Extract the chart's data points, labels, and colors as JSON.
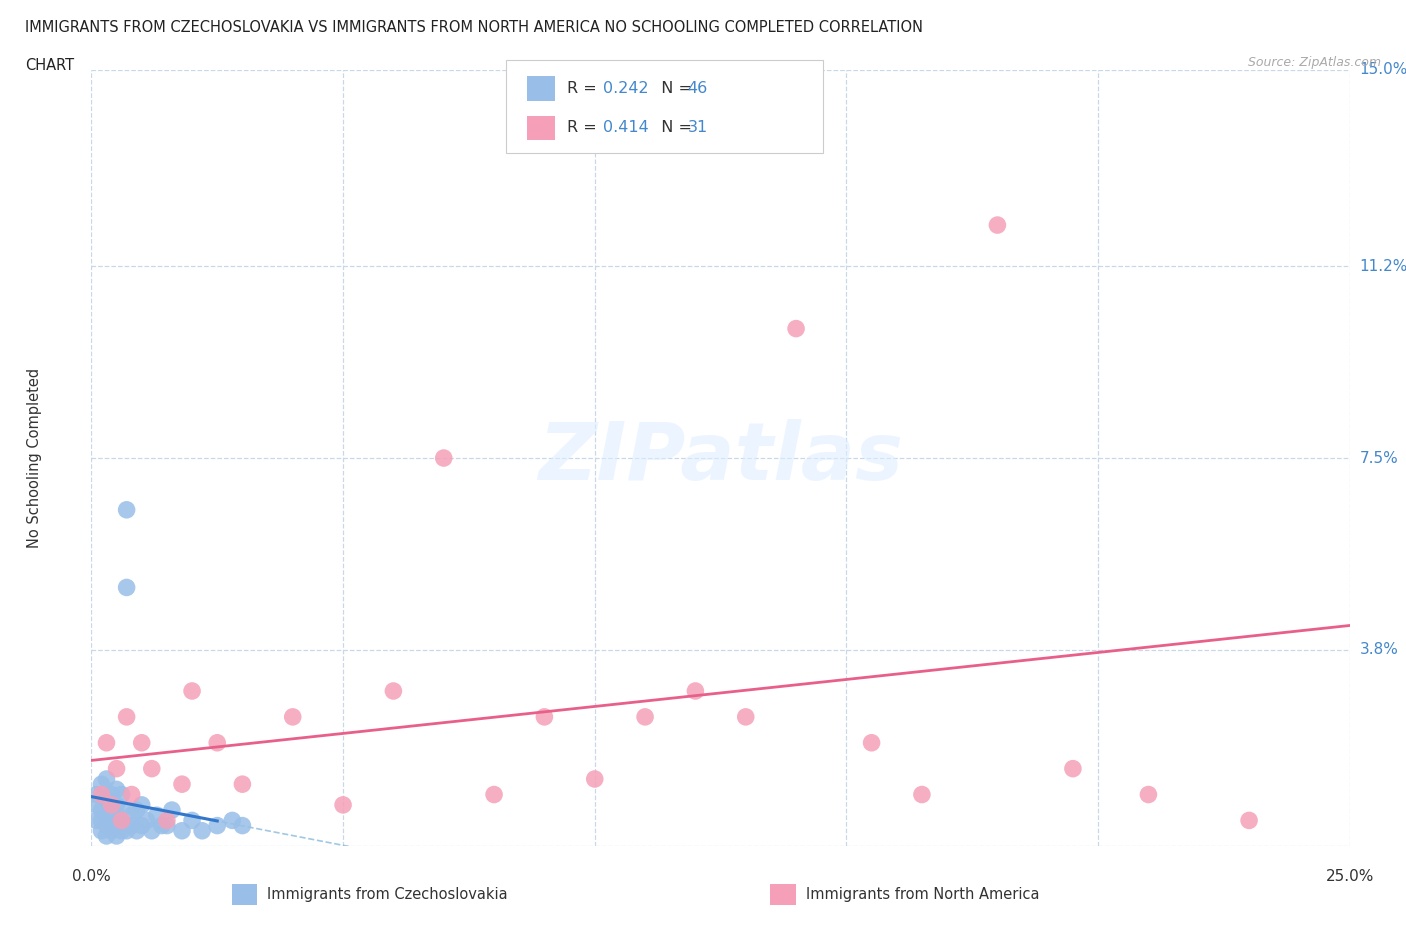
{
  "title_line1": "IMMIGRANTS FROM CZECHOSLOVAKIA VS IMMIGRANTS FROM NORTH AMERICA NO SCHOOLING COMPLETED CORRELATION",
  "title_line2": "CHART",
  "source": "Source: ZipAtlas.com",
  "ylabel": "No Schooling Completed",
  "xlim": [
    0.0,
    0.25
  ],
  "ylim": [
    0.0,
    0.15
  ],
  "xtick_vals": [
    0.0,
    0.05,
    0.1,
    0.15,
    0.2,
    0.25
  ],
  "ytick_vals": [
    0.0,
    0.038,
    0.075,
    0.112,
    0.15
  ],
  "ytick_labels": [
    "",
    "3.8%",
    "7.5%",
    "11.2%",
    "15.0%"
  ],
  "background_color": "#ffffff",
  "grid_color": "#c8d8e8",
  "watermark": "ZIPatlas",
  "czecho": {
    "name": "Immigrants from Czechoslovakia",
    "scatter_color": "#99bfe8",
    "line_color": "#3377cc",
    "R": 0.242,
    "N": 46,
    "x": [
      0.001,
      0.001,
      0.001,
      0.002,
      0.002,
      0.002,
      0.002,
      0.003,
      0.003,
      0.003,
      0.003,
      0.003,
      0.004,
      0.004,
      0.004,
      0.004,
      0.005,
      0.005,
      0.005,
      0.005,
      0.005,
      0.006,
      0.006,
      0.006,
      0.006,
      0.007,
      0.007,
      0.007,
      0.008,
      0.008,
      0.009,
      0.009,
      0.01,
      0.01,
      0.011,
      0.012,
      0.013,
      0.014,
      0.015,
      0.016,
      0.018,
      0.02,
      0.022,
      0.025,
      0.028,
      0.03
    ],
    "y": [
      0.005,
      0.008,
      0.01,
      0.003,
      0.005,
      0.007,
      0.012,
      0.002,
      0.004,
      0.006,
      0.009,
      0.013,
      0.003,
      0.005,
      0.007,
      0.01,
      0.002,
      0.004,
      0.006,
      0.008,
      0.011,
      0.003,
      0.005,
      0.007,
      0.01,
      0.003,
      0.05,
      0.065,
      0.004,
      0.006,
      0.003,
      0.007,
      0.004,
      0.008,
      0.005,
      0.003,
      0.006,
      0.004,
      0.004,
      0.007,
      0.003,
      0.005,
      0.003,
      0.004,
      0.005,
      0.004
    ]
  },
  "northam": {
    "name": "Immigrants from North America",
    "scatter_color": "#f5a0b8",
    "line_color": "#e8608a",
    "R": 0.414,
    "N": 31,
    "x": [
      0.002,
      0.003,
      0.004,
      0.005,
      0.006,
      0.007,
      0.008,
      0.01,
      0.012,
      0.015,
      0.018,
      0.02,
      0.025,
      0.03,
      0.04,
      0.05,
      0.06,
      0.07,
      0.08,
      0.09,
      0.1,
      0.11,
      0.12,
      0.13,
      0.14,
      0.155,
      0.165,
      0.18,
      0.195,
      0.21,
      0.23
    ],
    "y": [
      0.01,
      0.02,
      0.008,
      0.015,
      0.005,
      0.025,
      0.01,
      0.02,
      0.015,
      0.005,
      0.012,
      0.03,
      0.02,
      0.012,
      0.025,
      0.008,
      0.03,
      0.075,
      0.01,
      0.025,
      0.013,
      0.025,
      0.03,
      0.025,
      0.1,
      0.02,
      0.01,
      0.12,
      0.015,
      0.01,
      0.005
    ]
  }
}
